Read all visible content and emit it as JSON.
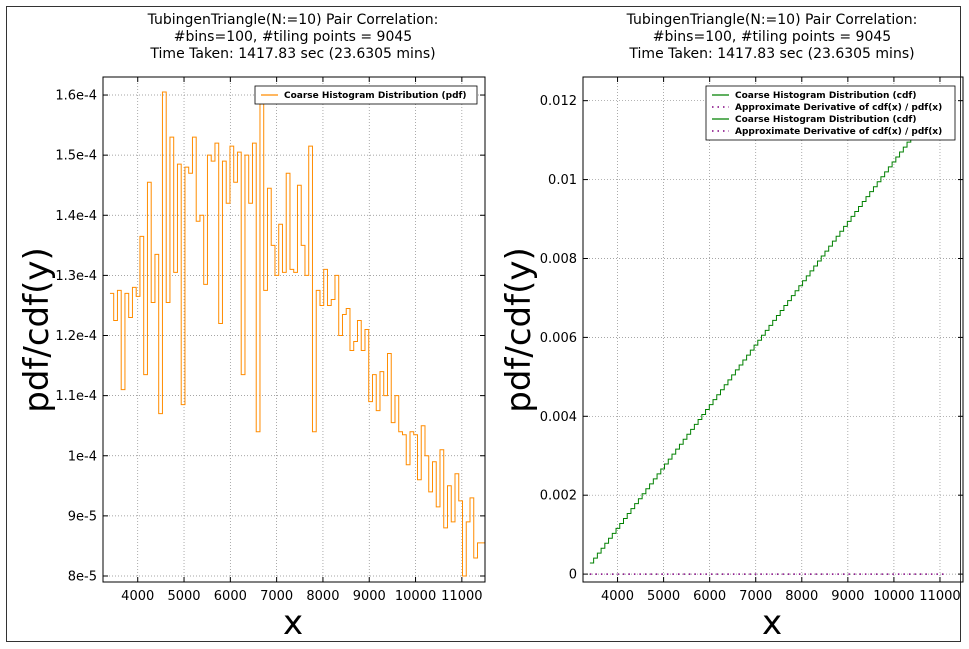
{
  "chart_data": [
    {
      "type": "line",
      "title": "TubingenTriangle(N:=10) Pair Correlation:",
      "subtitle": "#bins=100, #tiling points = 9045",
      "time_taken": "Time Taken: 1417.83 sec (23.6305 mins)",
      "xlabel": "x",
      "ylabel": "pdf/cdf(y)",
      "xlim": [
        3250,
        11500
      ],
      "ylim": [
        7.9e-05,
        0.000163
      ],
      "x_ticks": [
        4000,
        5000,
        6000,
        7000,
        8000,
        9000,
        10000,
        11000
      ],
      "x_tick_labels": [
        "4000",
        "5000",
        "6000",
        "7000",
        "8000",
        "9000",
        "10000",
        "11000"
      ],
      "y_ticks": [
        8e-05,
        9e-05,
        0.0001,
        0.00011,
        0.00012,
        0.00013,
        0.00014,
        0.00015,
        0.00016
      ],
      "y_tick_labels": [
        "8e-5",
        "9e-5",
        "1e-4",
        "1.1e-4",
        "1.2e-4",
        "1.3e-4",
        "1.4e-4",
        "1.5e-4",
        "1.6e-4"
      ],
      "grid": true,
      "legend_position": "top-right",
      "bin_start": 3400,
      "bin_width": 81,
      "series": [
        {
          "name": "Coarse Histogram Distribution (pdf)",
          "color": "#ff8c00",
          "style": "step",
          "values": [
            0.000127,
            0.0001225,
            0.0001275,
            0.000111,
            0.000127,
            0.000123,
            0.000128,
            0.0001265,
            0.0001365,
            0.0001135,
            0.0001455,
            0.0001255,
            0.0001335,
            0.000107,
            0.0001605,
            0.0001255,
            0.000153,
            0.0001305,
            0.0001485,
            0.0001085,
            0.000148,
            0.000147,
            0.000153,
            0.000139,
            0.00014,
            0.0001285,
            0.00015,
            0.000149,
            0.000152,
            0.000122,
            0.000149,
            0.000142,
            0.0001515,
            0.0001455,
            0.0001505,
            0.0001135,
            0.00015,
            0.000142,
            0.000152,
            0.000104,
            0.0001585,
            0.0001275,
            0.0001445,
            0.000135,
            0.00013,
            0.0001385,
            0.0001305,
            0.000147,
            0.000131,
            0.0001305,
            0.000145,
            0.000135,
            0.00013,
            0.0001515,
            0.000104,
            0.0001275,
            0.000125,
            0.000131,
            0.000125,
            0.000126,
            0.00013,
            0.00012,
            0.0001235,
            0.0001245,
            0.0001175,
            0.000119,
            0.0001225,
            0.0001175,
            0.000121,
            0.000109,
            0.0001135,
            0.0001075,
            0.000114,
            0.00011,
            0.000117,
            0.0001055,
            0.00011,
            0.000104,
            0.0001035,
            9.85e-05,
            0.000104,
            0.0001035,
            9.6e-05,
            0.000105,
            0.0001,
            9.4e-05,
            9.9e-05,
            9.15e-05,
            0.000101,
            8.8e-05,
            9.5e-05,
            8.9e-05,
            9.7e-05,
            9.25e-05,
            8e-05,
            8.9e-05,
            9.3e-05,
            8.3e-05,
            8.55e-05,
            8.55e-05
          ]
        }
      ]
    },
    {
      "type": "line",
      "title": "TubingenTriangle(N:=10) Pair Correlation:",
      "subtitle": "#bins=100, #tiling points = 9045",
      "time_taken": "Time Taken: 1417.83 sec (23.6305 mins)",
      "xlabel": "x",
      "ylabel": "pdf/cdf(y)",
      "xlim": [
        3250,
        11500
      ],
      "ylim": [
        -0.0002,
        0.0126
      ],
      "x_ticks": [
        4000,
        5000,
        6000,
        7000,
        8000,
        9000,
        10000,
        11000
      ],
      "x_tick_labels": [
        "4000",
        "5000",
        "6000",
        "7000",
        "8000",
        "9000",
        "10000",
        "11000"
      ],
      "y_ticks": [
        0,
        0.002,
        0.004,
        0.006,
        0.008,
        0.01,
        0.012
      ],
      "y_tick_labels": [
        "0",
        "0.002",
        "0.004",
        "0.006",
        "0.008",
        "0.01",
        "0.012"
      ],
      "grid": true,
      "legend_position": "top-right",
      "cdf_start": [
        3400,
        0.00028
      ],
      "cdf_end": [
        10450,
        0.0112
      ],
      "cdf_step": 81,
      "derivative_range": [
        3400,
        11100
      ],
      "series": [
        {
          "name": "Coarse Histogram Distribution (cdf)",
          "color": "#008000",
          "style": "solid"
        },
        {
          "name": "Approximate Derivative of cdf(x) / pdf(x)",
          "color": "#800080",
          "style": "dotted"
        },
        {
          "name": "Coarse Histogram Distribution (cdf)",
          "color": "#008000",
          "style": "solid"
        },
        {
          "name": "Approximate Derivative of cdf(x) / pdf(x)",
          "color": "#800080",
          "style": "dotted"
        }
      ]
    }
  ]
}
